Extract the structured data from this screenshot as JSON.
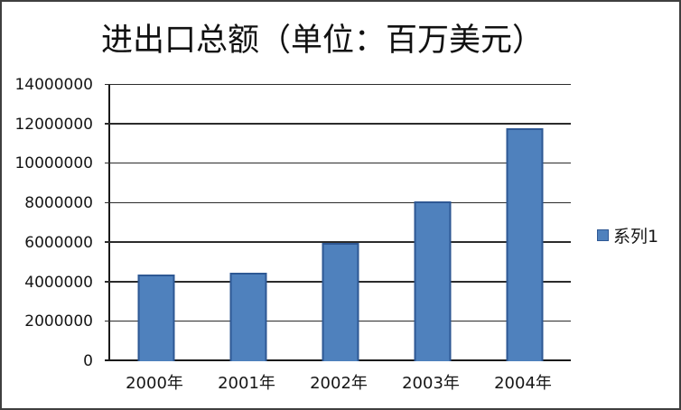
{
  "window": {
    "background": "#ffffff",
    "border_color": "#3f3f3f"
  },
  "chart_data": {
    "type": "bar",
    "title": "进出口总额（单位：百万美元）",
    "categories": [
      "2000年",
      "2001年",
      "2002年",
      "2003年",
      "2004年"
    ],
    "series": [
      {
        "name": "系列1",
        "values": [
          4400000,
          4500000,
          6000000,
          8100000,
          11800000
        ]
      }
    ],
    "xlabel": "",
    "ylabel": "",
    "ylim": [
      0,
      14000000
    ],
    "yticks": [
      0,
      2000000,
      4000000,
      6000000,
      8000000,
      10000000,
      12000000,
      14000000
    ],
    "grid": "horizontal",
    "legend": {
      "position": "right",
      "entries": [
        "系列1"
      ]
    },
    "colors": {
      "bar_fill": "#4F81BD",
      "bar_border": "#2E5894",
      "gridline": "#2b2b2b",
      "axis": "#1a1a1a",
      "text": "#161616"
    }
  }
}
